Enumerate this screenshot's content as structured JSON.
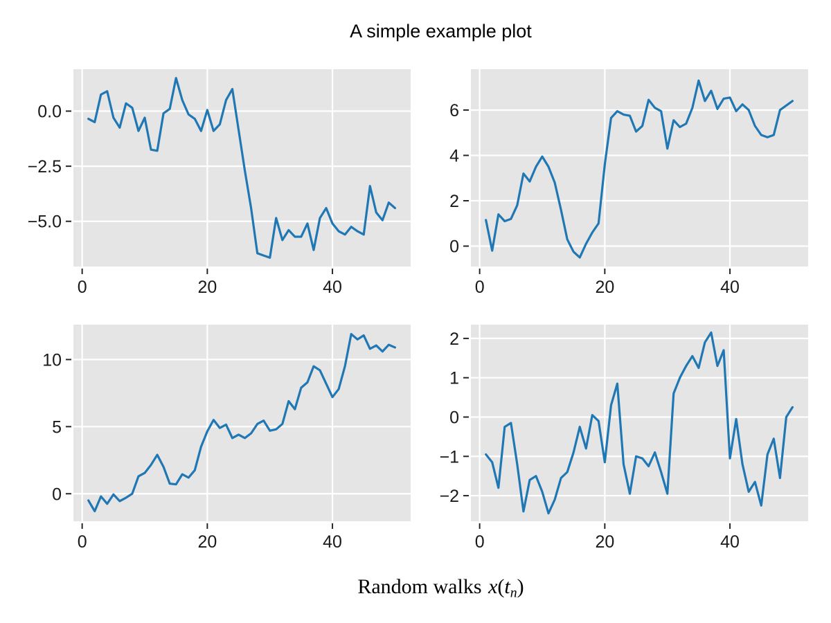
{
  "figure": {
    "title": "A simple example plot",
    "xlabel": {
      "prefix": "Random walks",
      "var_x": "x",
      "open_paren": "(",
      "var_t": "t",
      "subscript": "n",
      "close_paren": ")"
    },
    "colors": {
      "line": "#1f77b4",
      "panel_bg": "#e5e5e5",
      "grid": "#ffffff",
      "figure_bg": "#ffffff",
      "tick_label": "#1a1a1a",
      "tick_mark": "#262626"
    }
  },
  "chart_data": [
    {
      "name": "top-left",
      "type": "line",
      "x_start": 1,
      "x_step": 1,
      "values": [
        -0.35,
        -0.5,
        0.75,
        0.9,
        -0.3,
        -0.75,
        0.35,
        0.15,
        -0.9,
        -0.3,
        -1.75,
        -1.8,
        -0.1,
        0.1,
        1.5,
        0.5,
        -0.15,
        -0.35,
        -0.9,
        0.05,
        -0.9,
        -0.6,
        0.5,
        1.0,
        -0.85,
        -2.7,
        -4.4,
        -6.45,
        -6.55,
        -6.65,
        -4.85,
        -5.85,
        -5.4,
        -5.7,
        -5.7,
        -5.1,
        -6.3,
        -4.85,
        -4.4,
        -5.1,
        -5.45,
        -5.6,
        -5.25,
        -5.45,
        -5.6,
        -3.4,
        -4.6,
        -4.95,
        -4.15,
        -4.4
      ],
      "xlim": [
        -1.4,
        52.5
      ],
      "ylim": [
        -7.05,
        1.9
      ],
      "xticks": [
        0,
        20,
        40
      ],
      "xtick_labels": [
        "0",
        "20",
        "40"
      ],
      "yticks": [
        0,
        -2.5,
        -5
      ],
      "ytick_labels": [
        "0.0",
        "−2.5",
        "−5.0"
      ],
      "grid": true
    },
    {
      "name": "top-right",
      "type": "line",
      "x_start": 1,
      "x_step": 1,
      "values": [
        1.15,
        -0.2,
        1.4,
        1.1,
        1.2,
        1.8,
        3.2,
        2.85,
        3.5,
        3.95,
        3.5,
        2.8,
        1.6,
        0.3,
        -0.25,
        -0.5,
        0.1,
        0.6,
        1.0,
        3.6,
        5.65,
        5.95,
        5.8,
        5.75,
        5.05,
        5.3,
        6.45,
        6.1,
        5.95,
        4.3,
        5.55,
        5.25,
        5.4,
        6.1,
        7.3,
        6.4,
        6.85,
        6.05,
        6.5,
        6.55,
        5.95,
        6.25,
        6.0,
        5.3,
        4.9,
        4.8,
        4.9,
        6.0,
        6.2,
        6.4
      ],
      "xlim": [
        -1.4,
        52.5
      ],
      "ylim": [
        -0.9,
        7.8
      ],
      "xticks": [
        0,
        20,
        40
      ],
      "xtick_labels": [
        "0",
        "20",
        "40"
      ],
      "yticks": [
        0,
        2,
        4,
        6
      ],
      "ytick_labels": [
        "0",
        "2",
        "4",
        "6"
      ],
      "grid": true
    },
    {
      "name": "bottom-left",
      "type": "line",
      "x_start": 1,
      "x_step": 1,
      "values": [
        -0.5,
        -1.3,
        -0.2,
        -0.75,
        -0.05,
        -0.55,
        -0.3,
        0.0,
        1.3,
        1.55,
        2.15,
        2.9,
        2.0,
        0.75,
        0.7,
        1.45,
        1.2,
        1.75,
        3.5,
        4.65,
        5.5,
        4.9,
        5.15,
        4.15,
        4.4,
        4.15,
        4.5,
        5.2,
        5.45,
        4.7,
        4.8,
        5.2,
        6.9,
        6.3,
        7.9,
        8.3,
        9.5,
        9.2,
        8.2,
        7.2,
        7.8,
        9.5,
        11.9,
        11.5,
        11.8,
        10.8,
        11.05,
        10.6,
        11.1,
        10.9
      ],
      "xlim": [
        -1.4,
        52.5
      ],
      "ylim": [
        -2.05,
        12.6
      ],
      "xticks": [
        0,
        20,
        40
      ],
      "xtick_labels": [
        "0",
        "20",
        "40"
      ],
      "yticks": [
        0,
        5,
        10
      ],
      "ytick_labels": [
        "0",
        "5",
        "10"
      ],
      "grid": true
    },
    {
      "name": "bottom-right",
      "type": "line",
      "x_start": 1,
      "x_step": 1,
      "values": [
        -0.95,
        -1.15,
        -1.8,
        -0.25,
        -0.15,
        -1.2,
        -2.4,
        -1.6,
        -1.5,
        -1.9,
        -2.45,
        -2.1,
        -1.55,
        -1.4,
        -0.9,
        -0.25,
        -0.8,
        0.05,
        -0.1,
        -1.15,
        0.3,
        0.85,
        -1.2,
        -1.95,
        -1.0,
        -1.05,
        -1.25,
        -0.9,
        -1.4,
        -1.95,
        0.6,
        1.0,
        1.3,
        1.55,
        1.25,
        1.9,
        2.15,
        1.3,
        1.7,
        -1.05,
        -0.05,
        -1.2,
        -1.9,
        -1.65,
        -2.25,
        -0.95,
        -0.55,
        -1.55,
        0.0,
        0.25
      ],
      "xlim": [
        -1.4,
        52.5
      ],
      "ylim": [
        -2.65,
        2.35
      ],
      "xticks": [
        0,
        20,
        40
      ],
      "xtick_labels": [
        "0",
        "20",
        "40"
      ],
      "yticks": [
        -2,
        -1,
        0,
        1,
        2
      ],
      "ytick_labels": [
        "−2",
        "−1",
        "0",
        "1",
        "2"
      ],
      "grid": true
    }
  ]
}
